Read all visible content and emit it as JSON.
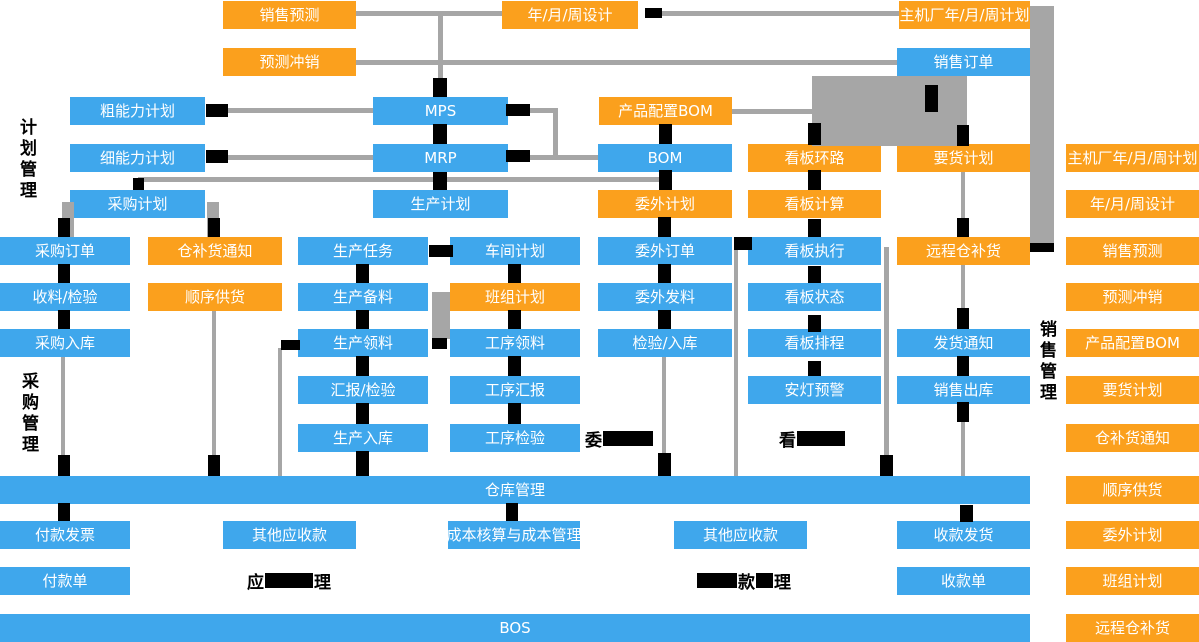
{
  "palette": {
    "box_blue": "#3FA7EC",
    "box_orange": "#FBA01D",
    "connector_gray": "#A6A6A6",
    "mark_black": "#000000",
    "box_text": "#FFFFFF",
    "label_text": "#000000"
  },
  "side_labels": [
    {
      "id": "plan-management",
      "text": "计划管理"
    },
    {
      "id": "purchase-management",
      "text": "采购管理"
    },
    {
      "id": "sales-management",
      "text": "销售管理"
    }
  ],
  "boxes": [
    {
      "id": "sales-forecast-top",
      "label": "销售预测",
      "color": "orange"
    },
    {
      "id": "year-month-week-design-top",
      "label": "年/月/周设计",
      "color": "orange"
    },
    {
      "id": "oem-year-month-week-plan-top",
      "label": "主机厂年/月/周计划",
      "color": "orange"
    },
    {
      "id": "forecast-offset-top",
      "label": "预测冲销",
      "color": "orange"
    },
    {
      "id": "sales-order",
      "label": "销售订单",
      "color": "blue"
    },
    {
      "id": "rough-capacity-plan",
      "label": "粗能力计划",
      "color": "blue"
    },
    {
      "id": "mps",
      "label": "MPS",
      "color": "blue"
    },
    {
      "id": "product-config-bom",
      "label": "产品配置BOM",
      "color": "orange"
    },
    {
      "id": "fine-capacity-plan",
      "label": "细能力计划",
      "color": "blue"
    },
    {
      "id": "mrp",
      "label": "MRP",
      "color": "blue"
    },
    {
      "id": "bom",
      "label": "BOM",
      "color": "blue"
    },
    {
      "id": "kanban-loop",
      "label": "看板环路",
      "color": "orange"
    },
    {
      "id": "delivery-request-plan",
      "label": "要货计划",
      "color": "orange"
    },
    {
      "id": "purchase-plan",
      "label": "采购计划",
      "color": "blue"
    },
    {
      "id": "production-plan",
      "label": "生产计划",
      "color": "blue"
    },
    {
      "id": "outsourcing-plan",
      "label": "委外计划",
      "color": "orange"
    },
    {
      "id": "kanban-calculation",
      "label": "看板计算",
      "color": "orange"
    },
    {
      "id": "purchase-order",
      "label": "采购订单",
      "color": "blue"
    },
    {
      "id": "warehouse-replenish-notice",
      "label": "仓补货通知",
      "color": "orange"
    },
    {
      "id": "production-task",
      "label": "生产任务",
      "color": "blue"
    },
    {
      "id": "workshop-plan",
      "label": "车间计划",
      "color": "blue"
    },
    {
      "id": "outsourcing-order",
      "label": "委外订单",
      "color": "blue"
    },
    {
      "id": "kanban-execution",
      "label": "看板执行",
      "color": "blue"
    },
    {
      "id": "remote-warehouse-replenish",
      "label": "远程仓补货",
      "color": "orange"
    },
    {
      "id": "receiving-inspection",
      "label": "收料/检验",
      "color": "blue"
    },
    {
      "id": "sequence-supply",
      "label": "顺序供货",
      "color": "orange"
    },
    {
      "id": "production-material-prep",
      "label": "生产备料",
      "color": "blue"
    },
    {
      "id": "team-plan",
      "label": "班组计划",
      "color": "orange"
    },
    {
      "id": "outsourcing-material-issue",
      "label": "委外发料",
      "color": "blue"
    },
    {
      "id": "kanban-status",
      "label": "看板状态",
      "color": "blue"
    },
    {
      "id": "purchase-inbound",
      "label": "采购入库",
      "color": "blue"
    },
    {
      "id": "production-picking",
      "label": "生产领料",
      "color": "blue"
    },
    {
      "id": "process-picking",
      "label": "工序领料",
      "color": "blue"
    },
    {
      "id": "inspection-inbound",
      "label": "检验/入库",
      "color": "blue"
    },
    {
      "id": "kanban-scheduling",
      "label": "看板排程",
      "color": "blue"
    },
    {
      "id": "shipping-notice",
      "label": "发货通知",
      "color": "blue"
    },
    {
      "id": "report-inspection",
      "label": "汇报/检验",
      "color": "blue"
    },
    {
      "id": "process-report",
      "label": "工序汇报",
      "color": "blue"
    },
    {
      "id": "andon-warning",
      "label": "安灯预警",
      "color": "blue"
    },
    {
      "id": "sales-outbound",
      "label": "销售出库",
      "color": "blue"
    },
    {
      "id": "production-inbound",
      "label": "生产入库",
      "color": "blue"
    },
    {
      "id": "process-inspection",
      "label": "工序检验",
      "color": "blue"
    },
    {
      "id": "warehouse-management-bar",
      "label": "仓库管理",
      "color": "blue"
    },
    {
      "id": "payment-invoice",
      "label": "付款发票",
      "color": "blue"
    },
    {
      "id": "other-receivables-1",
      "label": "其他应收款",
      "color": "blue"
    },
    {
      "id": "cost-accounting-management",
      "label": "成本核算与成本管理",
      "color": "blue"
    },
    {
      "id": "other-receivables-2",
      "label": "其他应收款",
      "color": "blue"
    },
    {
      "id": "receipt-delivery",
      "label": "收款发货",
      "color": "blue"
    },
    {
      "id": "payment-slip",
      "label": "付款单",
      "color": "blue"
    },
    {
      "id": "receipt-slip",
      "label": "收款单",
      "color": "blue"
    },
    {
      "id": "bos-bar",
      "label": "BOS",
      "color": "blue"
    },
    {
      "id": "legend-oem-year-month-week-plan",
      "label": "主机厂年/月/周计划",
      "color": "orange"
    },
    {
      "id": "legend-year-month-week-design",
      "label": "年/月/周设计",
      "color": "orange"
    },
    {
      "id": "legend-sales-forecast",
      "label": "销售预测",
      "color": "orange"
    },
    {
      "id": "legend-forecast-offset",
      "label": "预测冲销",
      "color": "orange"
    },
    {
      "id": "legend-product-config-bom",
      "label": "产品配置BOM",
      "color": "orange"
    },
    {
      "id": "legend-delivery-request-plan",
      "label": "要货计划",
      "color": "orange"
    },
    {
      "id": "legend-warehouse-replenish-notice",
      "label": "仓补货通知",
      "color": "orange"
    },
    {
      "id": "legend-sequence-supply",
      "label": "顺序供货",
      "color": "orange"
    },
    {
      "id": "legend-outsourcing-plan",
      "label": "委外计划",
      "color": "orange"
    },
    {
      "id": "legend-team-plan",
      "label": "班组计划",
      "color": "orange"
    },
    {
      "id": "legend-remote-warehouse-replenish",
      "label": "远程仓补货",
      "color": "orange"
    }
  ],
  "redacted_labels": [
    {
      "id": "outsourcing-management-label",
      "segments": [
        {
          "text": "委"
        },
        {
          "bar": 50
        }
      ]
    },
    {
      "id": "kanban-management-label",
      "segments": [
        {
          "text": "看"
        },
        {
          "bar": 48
        }
      ]
    },
    {
      "id": "payables-management-label",
      "segments": [
        {
          "text": "应"
        },
        {
          "bar": 48
        },
        {
          "text": "理"
        }
      ]
    },
    {
      "id": "receivables-management-label",
      "segments": [
        {
          "bar": 40
        },
        {
          "text": "款"
        },
        {
          "bar": 17
        },
        {
          "text": "理"
        }
      ]
    }
  ]
}
